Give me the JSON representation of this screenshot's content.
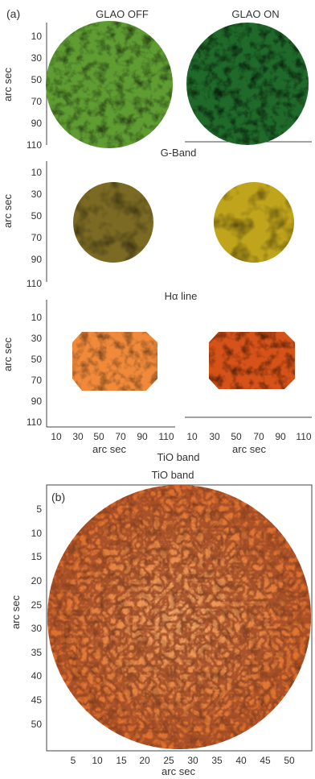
{
  "panel_a": {
    "label": "(a)",
    "column_titles": [
      "GLAO OFF",
      "GLAO ON"
    ],
    "ylabel": "arc sec",
    "xlabel": "arc sec",
    "y_ticks": [
      "10",
      "30",
      "50",
      "70",
      "90",
      "110"
    ],
    "x_ticks": [
      "10",
      "30",
      "50",
      "70",
      "90",
      "110"
    ],
    "row_labels": [
      "G-Band",
      "Hα line",
      "TiO band"
    ]
  },
  "panel_b": {
    "label": "(b)",
    "title": "TiO band",
    "ylabel": "arc sec",
    "xlabel": "arc sec",
    "y_ticks": [
      "5",
      "10",
      "15",
      "20",
      "25",
      "30",
      "35",
      "40",
      "45",
      "50"
    ],
    "x_ticks": [
      "5",
      "10",
      "15",
      "20",
      "25",
      "30",
      "35",
      "40",
      "45",
      "50"
    ]
  },
  "colors": {
    "gband_off": "#5f9d32",
    "gband_on": "#1f6a2a",
    "halpha_off": "#7b6a24",
    "halpha_on": "#c0a41c",
    "tio_off": "#f08a3a",
    "tio_on": "#d65218",
    "tio_large": "#e87a32"
  }
}
